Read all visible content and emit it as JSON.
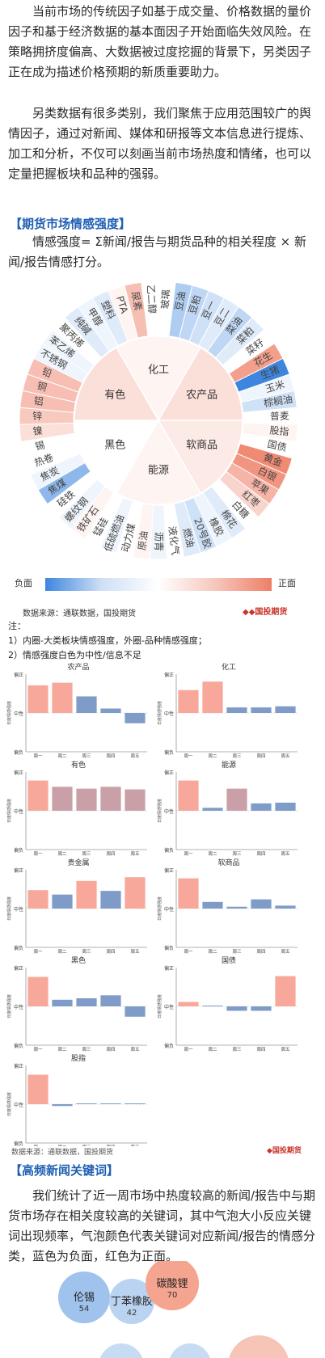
{
  "intro": {
    "p1": "当前市场的传统因子如基于成交量、价格数据的量价因子和基于经济数据的基本面因子开始面临失效风险。在策略拥挤度偏高、大数据被过度挖掘的背景下，另类因子正在成为描述价格预期的新质重要助力。",
    "p2": "另类数据有很多类别，我们聚焦于应用范围较广的舆情因子，通过对新闻、媒体和研报等文本信息进行提炼、加工和分析，不仅可以刻画当前市场热度和情绪，也可以定量把握板块和品种的强弱。"
  },
  "section1": {
    "title": "【期货市场情感强度】",
    "formula": "情感强度= Σ新闻/报告与期货品种的相关程度 × 新闻/报告情感打分。"
  },
  "sunburst": {
    "inner": [
      {
        "name": "化工",
        "v": 0.05
      },
      {
        "name": "农产品",
        "v": 0.15
      },
      {
        "name": "软商品",
        "v": 0.1
      },
      {
        "name": "能源",
        "v": 0.05
      },
      {
        "name": "黑色",
        "v": 0.0
      },
      {
        "name": "有色",
        "v": 0.15
      }
    ],
    "outer": [
      {
        "name": "玻璃",
        "v": 0.0
      },
      {
        "name": "豆油",
        "v": -0.25
      },
      {
        "name": "豆粕",
        "v": -0.2
      },
      {
        "name": "豆一",
        "v": -0.15
      },
      {
        "name": "豆二",
        "v": -0.1
      },
      {
        "name": "菜油",
        "v": -0.2
      },
      {
        "name": "菜粕",
        "v": -0.1
      },
      {
        "name": "菜籽",
        "v": 0.0
      },
      {
        "name": "花生",
        "v": 0.45
      },
      {
        "name": "生猪",
        "v": -0.65
      },
      {
        "name": "玉米",
        "v": -0.05
      },
      {
        "name": "棕榈油",
        "v": -0.15
      },
      {
        "name": "普麦",
        "v": 0.0
      },
      {
        "name": "股指",
        "v": 0.05
      },
      {
        "name": "国债",
        "v": 0.0
      },
      {
        "name": "黄金",
        "v": 0.55
      },
      {
        "name": "白银",
        "v": 0.5
      },
      {
        "name": "苹果",
        "v": 0.35
      },
      {
        "name": "红枣",
        "v": 0.2
      },
      {
        "name": "白糖",
        "v": 0.0
      },
      {
        "name": "棉花",
        "v": -0.1
      },
      {
        "name": "橡胶",
        "v": -0.05
      },
      {
        "name": "20号胶",
        "v": -0.15
      },
      {
        "name": "燃油",
        "v": -0.1
      },
      {
        "name": "液化气",
        "v": 0.0
      },
      {
        "name": "沥青",
        "v": -0.05
      },
      {
        "name": "原油",
        "v": 0.05
      },
      {
        "name": "动力煤",
        "v": 0.0
      },
      {
        "name": "低硫燃油",
        "v": -0.05
      },
      {
        "name": "锰硅",
        "v": 0.0
      },
      {
        "name": "铁矿石",
        "v": 0.05
      },
      {
        "name": "螺纹钢",
        "v": -0.05
      },
      {
        "name": "硅铁",
        "v": 0.0
      },
      {
        "name": "焦煤",
        "v": -0.35
      },
      {
        "name": "焦炭",
        "v": -0.05
      },
      {
        "name": "热卷",
        "v": 0.0
      },
      {
        "name": "锡",
        "v": 0.0
      },
      {
        "name": "镍",
        "v": 0.15
      },
      {
        "name": "锌",
        "v": 0.25
      },
      {
        "name": "铝",
        "v": 0.3
      },
      {
        "name": "铜",
        "v": 0.3
      },
      {
        "name": "铅",
        "v": 0.3
      },
      {
        "name": "不锈钢",
        "v": -0.05
      },
      {
        "name": "苯乙烯",
        "v": -0.05
      },
      {
        "name": "聚丙烯",
        "v": 0.0
      },
      {
        "name": "纯碱",
        "v": -0.1
      },
      {
        "name": "甲醇",
        "v": -0.05
      },
      {
        "name": "塑料",
        "v": -0.1
      },
      {
        "name": "PTA",
        "v": 0.05
      },
      {
        "name": "尿素",
        "v": 0.3
      },
      {
        "name": "乙二醇",
        "v": 0.0
      }
    ],
    "legend_neg": "负面",
    "legend_pos": "正面"
  },
  "source1": "数据来源：通联数据，国投期货",
  "logo_text": "国投期货",
  "notes": [
    "注：",
    "1）内圈-大类板块情感强度，外圈-品种情感强度；",
    "2）情感强度白色为中性/信息不足"
  ],
  "mini": {
    "ylabels": [
      "偏正",
      "中性",
      "偏负"
    ],
    "yaxis_title": "日度情感强度",
    "days": [
      "周一",
      "周二",
      "周三",
      "周四",
      "周五"
    ],
    "charts": [
      {
        "title": "农产品",
        "values": [
          0.75,
          0.82,
          0.45,
          0.12,
          -0.28
        ]
      },
      {
        "title": "化工",
        "values": [
          0.62,
          0.85,
          0.15,
          0.15,
          0.18
        ]
      },
      {
        "title": "有色",
        "values": [
          0.82,
          0.65,
          0.6,
          0.65,
          0.58
        ]
      },
      {
        "title": "能源",
        "values": [
          0.82,
          0.08,
          0.6,
          0.2,
          0.22
        ]
      },
      {
        "title": "贵金属",
        "values": [
          0.5,
          0.38,
          0.75,
          0.48,
          0.85
        ]
      },
      {
        "title": "软商品",
        "values": [
          0.82,
          0.18,
          0.05,
          0.25,
          0.08
        ]
      },
      {
        "title": "黑色",
        "values": [
          0.8,
          0.18,
          0.22,
          0.3,
          -0.28
        ]
      },
      {
        "title": "国债",
        "values": [
          0.12,
          0.0,
          -0.12,
          -0.12,
          0.82
        ]
      },
      {
        "title": "股指",
        "values": [
          0.8,
          -0.05,
          0.02,
          0.0,
          0.0
        ]
      }
    ]
  },
  "source2": "数据来源：通联数据，国投期货",
  "section2": {
    "title": "【高频新闻关键词】",
    "p": "我们统计了近一周市场中热度较高的新闻/报告中与期货市场存在相关度较高的关键词，其中气泡大小反应关键词出现频率，气泡颜色代表关键词对应新闻/报告的情感分类，蓝色为负面，红色为正面。"
  },
  "bubbles": [
    {
      "word": "伦锡",
      "count": "54",
      "color": "#9fc3ec"
    },
    {
      "word": "丁苯橡胶",
      "count": "42",
      "color": "#b9d3f1"
    },
    {
      "word": "碳酸锂",
      "count": "70",
      "color": "#f4a48f"
    }
  ],
  "colors": {
    "pos": "#f19680",
    "neg": "#4a8ad8",
    "poscolor_bar": "#f5a79a",
    "negbar": "#7f9cc8"
  }
}
